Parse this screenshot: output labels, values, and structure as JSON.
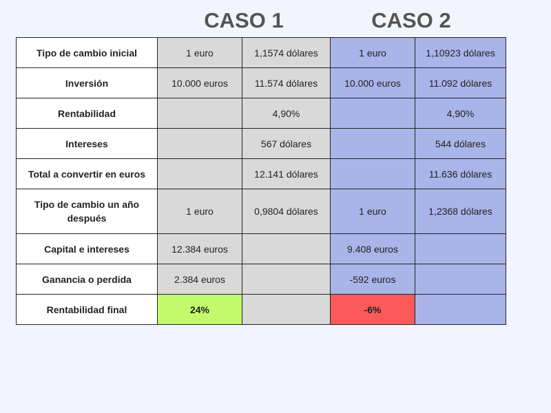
{
  "titles": {
    "case1": "CASO 1",
    "case2": "CASO 2"
  },
  "rows": [
    {
      "label": "Tipo de cambio inicial",
      "c1a": "1 euro",
      "c1b": "1,1574 dólares",
      "c2a": "1 euro",
      "c2b": "1,10923 dólares"
    },
    {
      "label": "Inversión",
      "c1a": "10.000 euros",
      "c1b": "11.574 dólares",
      "c2a": "10.000 euros",
      "c2b": "11.092 dólares"
    },
    {
      "label": "Rentabilidad",
      "c1a": "",
      "c1b": "4,90%",
      "c2a": "",
      "c2b": "4,90%"
    },
    {
      "label": "Intereses",
      "c1a": "",
      "c1b": "567 dólares",
      "c2a": "",
      "c2b": "544 dólares"
    },
    {
      "label": "Total a convertir en euros",
      "c1a": "",
      "c1b": "12.141 dólares",
      "c2a": "",
      "c2b": "11.636 dólares"
    },
    {
      "label": "Tipo de cambio un año después",
      "c1a": "1 euro",
      "c1b": "0,9804 dólares",
      "c2a": "1 euro",
      "c2b": "1,2368 dólares"
    },
    {
      "label": "Capital e intereses",
      "c1a": "12.384 euros",
      "c1b": "",
      "c2a": "9.408 euros",
      "c2b": ""
    },
    {
      "label": "Ganancia o perdida",
      "c1a": "2.384 euros",
      "c1b": "",
      "c2a": "-592 euros",
      "c2b": ""
    },
    {
      "label": "Rentabilidad final",
      "c1a": "24%",
      "c1b": "",
      "c2a": "-6%",
      "c2b": ""
    }
  ],
  "colors": {
    "background": "#f3f5fe",
    "case1_fill": "#d9d9d9",
    "case2_fill": "#a9b4e8",
    "positive_highlight": "#c3fa6b",
    "negative_highlight": "#fb5a5a"
  }
}
